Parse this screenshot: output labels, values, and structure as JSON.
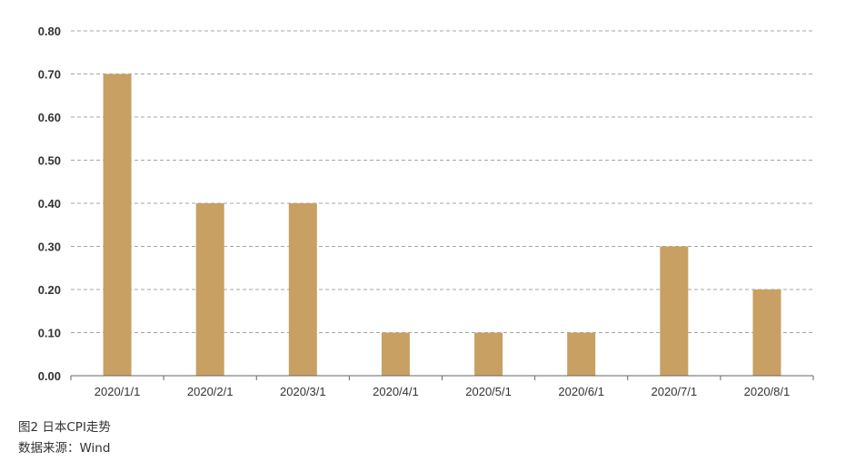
{
  "chart_data": {
    "type": "bar",
    "categories": [
      "2020/1/1",
      "2020/2/1",
      "2020/3/1",
      "2020/4/1",
      "2020/5/1",
      "2020/6/1",
      "2020/7/1",
      "2020/8/1"
    ],
    "values": [
      0.7,
      0.4,
      0.4,
      0.1,
      0.1,
      0.1,
      0.3,
      0.2
    ],
    "yticks": [
      "0.00",
      "0.10",
      "0.20",
      "0.30",
      "0.40",
      "0.50",
      "0.60",
      "0.70",
      "0.80"
    ],
    "ylim": [
      0,
      0.8
    ],
    "grid": true,
    "bar_color": "#C8A063",
    "grid_color": "#888888",
    "axis_color": "#666666"
  },
  "caption": {
    "title": "图2 日本CPI走势",
    "source": "数据来源：Wind"
  }
}
